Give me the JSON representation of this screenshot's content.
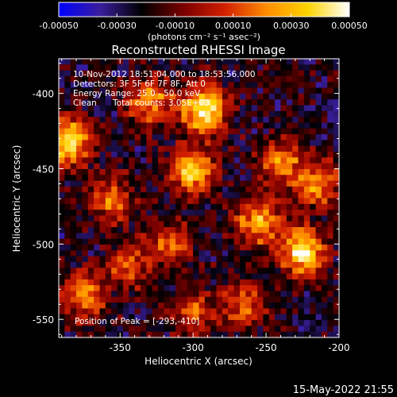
{
  "colorbar": {
    "tick_labels": [
      "-0.00050",
      "-0.00030",
      "-0.00010",
      "0.00010",
      "0.00030",
      "0.00050"
    ],
    "tick_values": [
      -0.0005,
      -0.0003,
      -0.0001,
      0.0001,
      0.0003,
      0.0005
    ],
    "range": [
      -0.0005,
      0.0005
    ],
    "units": "(photons cm⁻² s⁻¹ asec⁻²)",
    "stops": [
      "#0000ff",
      "#3a1e9c",
      "#000000",
      "#7a0000",
      "#d22000",
      "#ff8c00",
      "#ffd400",
      "#ffffff"
    ]
  },
  "chart_data": {
    "type": "heatmap",
    "title": "Reconstructed RHESSI Image",
    "xlabel": "Heliocentric X (arcsec)",
    "ylabel": "Heliocentric Y (arcsec)",
    "xlim": [
      -392,
      -200
    ],
    "ylim": [
      -562,
      -377
    ],
    "x_ticks": [
      -350,
      -300,
      -250,
      -200
    ],
    "x_tick_labels": [
      "-350",
      "-300",
      "-250",
      "-200"
    ],
    "y_ticks": [
      -400,
      -450,
      -500,
      -550
    ],
    "y_tick_labels": [
      "-400",
      "-450",
      "-500",
      "-550"
    ],
    "peak": [
      -293,
      -410
    ],
    "hot_spots": [
      {
        "x": -385,
        "y": -432,
        "intensity": 0.00042
      },
      {
        "x": -293,
        "y": -410,
        "intensity": 0.0005
      },
      {
        "x": -330,
        "y": -405,
        "intensity": 0.00028
      },
      {
        "x": -300,
        "y": -452,
        "intensity": 0.00035
      },
      {
        "x": -355,
        "y": -470,
        "intensity": 0.00018
      },
      {
        "x": -375,
        "y": -535,
        "intensity": 0.00022
      },
      {
        "x": -225,
        "y": -505,
        "intensity": 0.00046
      },
      {
        "x": -255,
        "y": -485,
        "intensity": 0.00032
      },
      {
        "x": -215,
        "y": -460,
        "intensity": 0.00026
      },
      {
        "x": -240,
        "y": -445,
        "intensity": 0.0002
      },
      {
        "x": -315,
        "y": -500,
        "intensity": 0.00015
      },
      {
        "x": -345,
        "y": -515,
        "intensity": 0.00012
      },
      {
        "x": -265,
        "y": -540,
        "intensity": 0.00017
      },
      {
        "x": -300,
        "y": -545,
        "intensity": 0.00014
      }
    ],
    "annotations": {
      "time_range": "10-Nov-2012 18:51:04.000 to 18:53:56.000",
      "detectors": "Detectors: 3F 5F 6F 7F 8F, Att 0",
      "energy": "Energy Range: 25.0 - 50.0 keV",
      "algorithm": "Clean",
      "total_counts": "Total counts: 3.05E+03",
      "peak_label": "Position of Peak = [-293,-410]"
    }
  },
  "footer": {
    "timestamp": "15-May-2022 21:55"
  }
}
